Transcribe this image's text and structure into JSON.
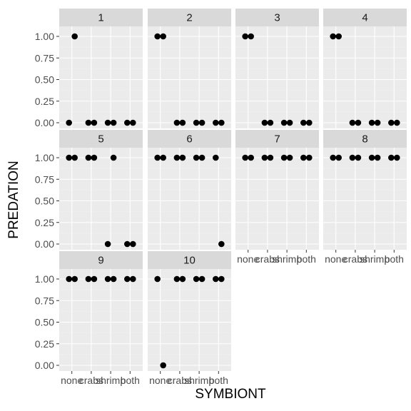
{
  "chart_data": {
    "type": "scatter",
    "facet_variable": "panel",
    "xlabel": "SYMBIONT",
    "ylabel": "PREDATION",
    "x_categories": [
      "none",
      "crabs",
      "shrimp",
      "both"
    ],
    "y_ticks": [
      "0.00",
      "0.25",
      "0.50",
      "0.75",
      "1.00"
    ],
    "ylim": [
      0,
      1
    ],
    "grid": true,
    "colors": {
      "panel_background": "#ebebeb",
      "strip_background": "#d9d9d9",
      "grid_major": "#ffffff",
      "grid_minor": "#f2f2f2",
      "point": "#000000"
    },
    "panels": [
      {
        "label": "1",
        "points": [
          {
            "x": "none",
            "y": 0
          },
          {
            "x": "none",
            "y": 1
          },
          {
            "x": "crabs",
            "y": 0
          },
          {
            "x": "crabs",
            "y": 0
          },
          {
            "x": "shrimp",
            "y": 0
          },
          {
            "x": "shrimp",
            "y": 0
          },
          {
            "x": "both",
            "y": 0
          },
          {
            "x": "both",
            "y": 0
          }
        ]
      },
      {
        "label": "2",
        "points": [
          {
            "x": "none",
            "y": 1
          },
          {
            "x": "none",
            "y": 1
          },
          {
            "x": "crabs",
            "y": 0
          },
          {
            "x": "crabs",
            "y": 0
          },
          {
            "x": "shrimp",
            "y": 0
          },
          {
            "x": "shrimp",
            "y": 0
          },
          {
            "x": "both",
            "y": 0
          },
          {
            "x": "both",
            "y": 0
          }
        ]
      },
      {
        "label": "3",
        "points": [
          {
            "x": "none",
            "y": 1
          },
          {
            "x": "none",
            "y": 1
          },
          {
            "x": "crabs",
            "y": 0
          },
          {
            "x": "crabs",
            "y": 0
          },
          {
            "x": "shrimp",
            "y": 0
          },
          {
            "x": "shrimp",
            "y": 0
          },
          {
            "x": "both",
            "y": 0
          },
          {
            "x": "both",
            "y": 0
          }
        ]
      },
      {
        "label": "4",
        "points": [
          {
            "x": "none",
            "y": 1
          },
          {
            "x": "none",
            "y": 1
          },
          {
            "x": "crabs",
            "y": 0
          },
          {
            "x": "crabs",
            "y": 0
          },
          {
            "x": "shrimp",
            "y": 0
          },
          {
            "x": "shrimp",
            "y": 0
          },
          {
            "x": "both",
            "y": 0
          },
          {
            "x": "both",
            "y": 0
          }
        ]
      },
      {
        "label": "5",
        "points": [
          {
            "x": "none",
            "y": 1
          },
          {
            "x": "none",
            "y": 1
          },
          {
            "x": "crabs",
            "y": 1
          },
          {
            "x": "crabs",
            "y": 1
          },
          {
            "x": "shrimp",
            "y": 0
          },
          {
            "x": "shrimp",
            "y": 1
          },
          {
            "x": "both",
            "y": 0
          },
          {
            "x": "both",
            "y": 0
          }
        ]
      },
      {
        "label": "6",
        "points": [
          {
            "x": "none",
            "y": 1
          },
          {
            "x": "none",
            "y": 1
          },
          {
            "x": "crabs",
            "y": 1
          },
          {
            "x": "crabs",
            "y": 1
          },
          {
            "x": "shrimp",
            "y": 1
          },
          {
            "x": "shrimp",
            "y": 1
          },
          {
            "x": "both",
            "y": 1
          },
          {
            "x": "both",
            "y": 0
          }
        ]
      },
      {
        "label": "7",
        "points": [
          {
            "x": "none",
            "y": 1
          },
          {
            "x": "none",
            "y": 1
          },
          {
            "x": "crabs",
            "y": 1
          },
          {
            "x": "crabs",
            "y": 1
          },
          {
            "x": "shrimp",
            "y": 1
          },
          {
            "x": "shrimp",
            "y": 1
          },
          {
            "x": "both",
            "y": 1
          },
          {
            "x": "both",
            "y": 1
          }
        ]
      },
      {
        "label": "8",
        "points": [
          {
            "x": "none",
            "y": 1
          },
          {
            "x": "none",
            "y": 1
          },
          {
            "x": "crabs",
            "y": 1
          },
          {
            "x": "crabs",
            "y": 1
          },
          {
            "x": "shrimp",
            "y": 1
          },
          {
            "x": "shrimp",
            "y": 1
          },
          {
            "x": "both",
            "y": 1
          },
          {
            "x": "both",
            "y": 1
          }
        ]
      },
      {
        "label": "9",
        "points": [
          {
            "x": "none",
            "y": 1
          },
          {
            "x": "none",
            "y": 1
          },
          {
            "x": "crabs",
            "y": 1
          },
          {
            "x": "crabs",
            "y": 1
          },
          {
            "x": "shrimp",
            "y": 1
          },
          {
            "x": "shrimp",
            "y": 1
          },
          {
            "x": "both",
            "y": 1
          },
          {
            "x": "both",
            "y": 1
          }
        ]
      },
      {
        "label": "10",
        "points": [
          {
            "x": "none",
            "y": 1
          },
          {
            "x": "none",
            "y": 0
          },
          {
            "x": "crabs",
            "y": 1
          },
          {
            "x": "crabs",
            "y": 1
          },
          {
            "x": "shrimp",
            "y": 1
          },
          {
            "x": "shrimp",
            "y": 1
          },
          {
            "x": "both",
            "y": 1
          },
          {
            "x": "both",
            "y": 1
          }
        ]
      }
    ]
  }
}
